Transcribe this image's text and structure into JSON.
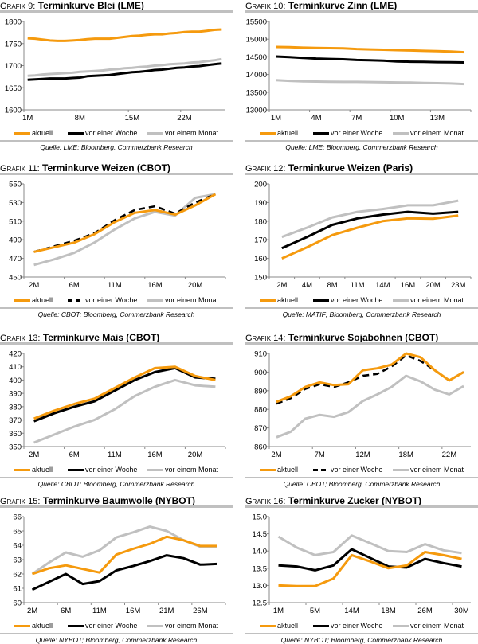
{
  "legend": {
    "aktuell": "aktuell",
    "woche": "vor einer Woche",
    "monat": "vor einem Monat"
  },
  "colors": {
    "aktuell": "#f59a0e",
    "woche": "#000000",
    "monat": "#c0c0c0",
    "rule": "#c0c0c0"
  },
  "chart_data": [
    {
      "prefix": "Grafik 9:",
      "title": "Terminkurve Blei (LME)",
      "source": "Quelle: LME; Bloomberg, Commerzbank Research",
      "type": "line",
      "ylim": [
        1600,
        1800
      ],
      "yticks": [
        1600,
        1650,
        1700,
        1750,
        1800
      ],
      "x_ticks": [
        {
          "at": 0,
          "label": "1M"
        },
        {
          "at": 7,
          "label": "8M"
        },
        {
          "at": 14,
          "label": "15M"
        },
        {
          "at": 21,
          "label": "22M"
        }
      ],
      "woche_dashed": false,
      "series": [
        {
          "name": "aktuell",
          "values": [
            1762,
            1761,
            1759,
            1757,
            1756,
            1756,
            1757,
            1758,
            1760,
            1761,
            1761,
            1761,
            1763,
            1765,
            1767,
            1768,
            1770,
            1771,
            1771,
            1773,
            1774,
            1776,
            1777,
            1777,
            1779,
            1781,
            1782
          ]
        },
        {
          "name": "vor einer Woche",
          "values": [
            1668,
            1669,
            1670,
            1671,
            1671,
            1671,
            1672,
            1673,
            1676,
            1677,
            1678,
            1679,
            1681,
            1683,
            1685,
            1686,
            1688,
            1690,
            1691,
            1693,
            1695,
            1696,
            1698,
            1699,
            1701,
            1703,
            1705
          ]
        },
        {
          "name": "vor einem Monat",
          "values": [
            1677,
            1678,
            1680,
            1681,
            1682,
            1683,
            1684,
            1686,
            1687,
            1688,
            1689,
            1691,
            1692,
            1694,
            1695,
            1697,
            1698,
            1700,
            1701,
            1703,
            1704,
            1705,
            1707,
            1708,
            1710,
            1712,
            1715
          ]
        }
      ]
    },
    {
      "prefix": "Grafik 10:",
      "title": "Terminkurve Zinn (LME)",
      "source": "Quelle: LME; Bloomberg, Commerzbank Research",
      "type": "line",
      "ylim": [
        13000,
        15500
      ],
      "yticks": [
        13000,
        13500,
        14000,
        14500,
        15000,
        15500
      ],
      "x_ticks": [
        {
          "at": 0,
          "label": "1M"
        },
        {
          "at": 3,
          "label": "4M"
        },
        {
          "at": 6,
          "label": "7M"
        },
        {
          "at": 9,
          "label": "10M"
        },
        {
          "at": 12,
          "label": "13M"
        }
      ],
      "woche_dashed": false,
      "series": [
        {
          "name": "aktuell",
          "values": [
            14780,
            14775,
            14760,
            14750,
            14745,
            14740,
            14720,
            14710,
            14700,
            14690,
            14680,
            14670,
            14660,
            14650,
            14630
          ]
        },
        {
          "name": "vor einer Woche",
          "values": [
            14510,
            14490,
            14470,
            14450,
            14440,
            14430,
            14410,
            14400,
            14390,
            14370,
            14360,
            14355,
            14350,
            14345,
            14340
          ]
        },
        {
          "name": "vor einem Monat",
          "values": [
            13840,
            13820,
            13805,
            13800,
            13795,
            13790,
            13790,
            13785,
            13780,
            13775,
            13770,
            13760,
            13755,
            13745,
            13730
          ]
        }
      ]
    },
    {
      "prefix": "Grafik 11:",
      "title": "Terminkurve Weizen (CBOT)",
      "source": "Quelle: CBOT; Bloomberg, Commerzbank Research",
      "type": "line",
      "ylim": [
        450,
        550
      ],
      "yticks": [
        450,
        470,
        490,
        510,
        530,
        550
      ],
      "x_ticks": [
        {
          "at": 0,
          "label": "2M"
        },
        {
          "at": 2,
          "label": "6M"
        },
        {
          "at": 4,
          "label": "11M"
        },
        {
          "at": 6,
          "label": "16M"
        },
        {
          "at": 8,
          "label": "20M"
        }
      ],
      "woche_dashed": true,
      "series": [
        {
          "name": "aktuell",
          "values": [
            477,
            482,
            487,
            496,
            509,
            519,
            522,
            517,
            527,
            539
          ]
        },
        {
          "name": "vor einer Woche",
          "values": [
            477,
            483,
            489,
            497,
            511,
            522,
            526,
            518,
            530,
            539
          ]
        },
        {
          "name": "vor einem Monat",
          "values": [
            463,
            469,
            476,
            487,
            501,
            513,
            520,
            516,
            535,
            539
          ]
        }
      ]
    },
    {
      "prefix": "Grafik 12:",
      "title": "Terminkurve Weizen (Paris)",
      "source": "Quelle: MATIF; Bloomberg, Commerzbank Research",
      "type": "line",
      "ylim": [
        150,
        200
      ],
      "yticks": [
        150,
        160,
        170,
        180,
        190,
        200
      ],
      "x_ticks": [
        {
          "at": 0,
          "label": "2M"
        },
        {
          "at": 1,
          "label": "4M"
        },
        {
          "at": 2,
          "label": "8M"
        },
        {
          "at": 3,
          "label": "11M"
        },
        {
          "at": 4,
          "label": "14M"
        },
        {
          "at": 5,
          "label": "16M"
        },
        {
          "at": 6,
          "label": "20M"
        },
        {
          "at": 7,
          "label": "23M"
        }
      ],
      "woche_dashed": false,
      "series": [
        {
          "name": "aktuell",
          "values": [
            160,
            166,
            172.5,
            176.5,
            180,
            181.5,
            181.3,
            183
          ]
        },
        {
          "name": "vor einer Woche",
          "values": [
            165.5,
            171.5,
            178,
            181.5,
            183.5,
            185,
            184,
            185
          ]
        },
        {
          "name": "vor einem Monat",
          "values": [
            171.5,
            176.5,
            182,
            185,
            186.5,
            188.5,
            188.5,
            191
          ]
        }
      ]
    },
    {
      "prefix": "Grafik 13:",
      "title": "Terminkurve Mais (CBOT)",
      "source": "Quelle: CBOT; Bloomberg, Commerzbank Research",
      "type": "line",
      "ylim": [
        350,
        420
      ],
      "yticks": [
        350,
        360,
        370,
        380,
        390,
        400,
        410,
        420
      ],
      "x_ticks": [
        {
          "at": 0,
          "label": "2M"
        },
        {
          "at": 2,
          "label": "6M"
        },
        {
          "at": 4,
          "label": "11M"
        },
        {
          "at": 6,
          "label": "16M"
        },
        {
          "at": 8,
          "label": "20M"
        }
      ],
      "woche_dashed": false,
      "series": [
        {
          "name": "aktuell",
          "values": [
            371,
            377,
            382,
            386,
            394,
            402,
            409,
            410,
            403,
            400
          ]
        },
        {
          "name": "vor einer Woche",
          "values": [
            369,
            375,
            380,
            384,
            392,
            400,
            406,
            409,
            402,
            401
          ]
        },
        {
          "name": "vor einem Monat",
          "values": [
            353,
            359,
            365,
            370,
            378,
            388,
            395,
            400,
            396,
            395
          ]
        }
      ]
    },
    {
      "prefix": "Grafik 14:",
      "title": "Terminkurve Sojabohnen (CBOT)",
      "source": "Quelle: CBOT; Bloomberg, Commerzbank Research",
      "type": "line",
      "ylim": [
        860,
        910
      ],
      "yticks": [
        860,
        870,
        880,
        890,
        900,
        910
      ],
      "x_ticks": [
        {
          "at": 0,
          "label": "2M"
        },
        {
          "at": 3,
          "label": "7M"
        },
        {
          "at": 6,
          "label": "12M"
        },
        {
          "at": 9,
          "label": "18M"
        },
        {
          "at": 12,
          "label": "22M"
        }
      ],
      "woche_dashed": true,
      "series": [
        {
          "name": "aktuell",
          "values": [
            884,
            887,
            892,
            894.5,
            893,
            893.5,
            901,
            902,
            904,
            910,
            908,
            901,
            895.5,
            900
          ]
        },
        {
          "name": "vor einer Woche",
          "values": [
            883,
            886,
            891,
            893.5,
            892,
            894.5,
            898,
            899,
            903,
            909,
            906,
            901,
            895.5,
            900
          ]
        },
        {
          "name": "vor einem Monat",
          "values": [
            865,
            868,
            875,
            877,
            876,
            878.5,
            884.5,
            888,
            892,
            898,
            895,
            890.5,
            888,
            892.5
          ]
        }
      ]
    },
    {
      "prefix": "Grafik 15:",
      "title": "Terminkurve Baumwolle (NYBOT)",
      "source": "Quelle: NYBOT; Bloomberg, Commerzbank Research",
      "type": "line",
      "ylim": [
        60,
        66
      ],
      "yticks": [
        60,
        61,
        62,
        63,
        64,
        65,
        66
      ],
      "x_ticks": [
        {
          "at": 0,
          "label": "2M"
        },
        {
          "at": 2,
          "label": "6M"
        },
        {
          "at": 4,
          "label": "11M"
        },
        {
          "at": 6,
          "label": "16M"
        },
        {
          "at": 8,
          "label": "21M"
        },
        {
          "at": 10,
          "label": "26M"
        }
      ],
      "woche_dashed": false,
      "series": [
        {
          "name": "aktuell",
          "values": [
            62.0,
            62.4,
            62.6,
            62.35,
            62.1,
            63.35,
            63.75,
            64.1,
            64.6,
            64.35,
            63.95,
            63.95
          ]
        },
        {
          "name": "vor einer Woche",
          "values": [
            60.9,
            61.45,
            62.0,
            61.3,
            61.5,
            62.25,
            62.55,
            62.9,
            63.3,
            63.1,
            62.65,
            62.7
          ]
        },
        {
          "name": "vor einem Monat",
          "values": [
            62.0,
            62.8,
            63.5,
            63.2,
            63.65,
            64.55,
            64.9,
            65.3,
            65.0,
            64.35,
            63.9,
            63.9
          ]
        }
      ]
    },
    {
      "prefix": "Grafik 16:",
      "title": "Terminkurve Zucker (NYBOT)",
      "source": "Quelle: NYBOT; Bloomberg, Commerzbank Research",
      "type": "line",
      "ylim": [
        12.5,
        15.0
      ],
      "yticks": [
        "12.5",
        "13.0",
        "13.5",
        "14.0",
        "14.5",
        "15.0"
      ],
      "x_ticks": [
        {
          "at": 0,
          "label": "1M"
        },
        {
          "at": 2,
          "label": "5M"
        },
        {
          "at": 4,
          "label": "14M"
        },
        {
          "at": 6,
          "label": "18M"
        },
        {
          "at": 8,
          "label": "26M"
        },
        {
          "at": 10,
          "label": "30M"
        }
      ],
      "woche_dashed": false,
      "series": [
        {
          "name": "aktuell",
          "values": [
            13.0,
            12.98,
            12.98,
            13.2,
            13.88,
            13.7,
            13.5,
            13.58,
            13.97,
            13.88,
            13.77
          ]
        },
        {
          "name": "vor einer Woche",
          "values": [
            13.58,
            13.55,
            13.44,
            13.58,
            14.05,
            13.8,
            13.55,
            13.52,
            13.77,
            13.65,
            13.55
          ]
        },
        {
          "name": "vor einem Monat",
          "values": [
            14.42,
            14.1,
            13.88,
            13.97,
            14.45,
            14.23,
            14.0,
            13.97,
            14.2,
            14.02,
            13.94
          ]
        }
      ]
    }
  ]
}
